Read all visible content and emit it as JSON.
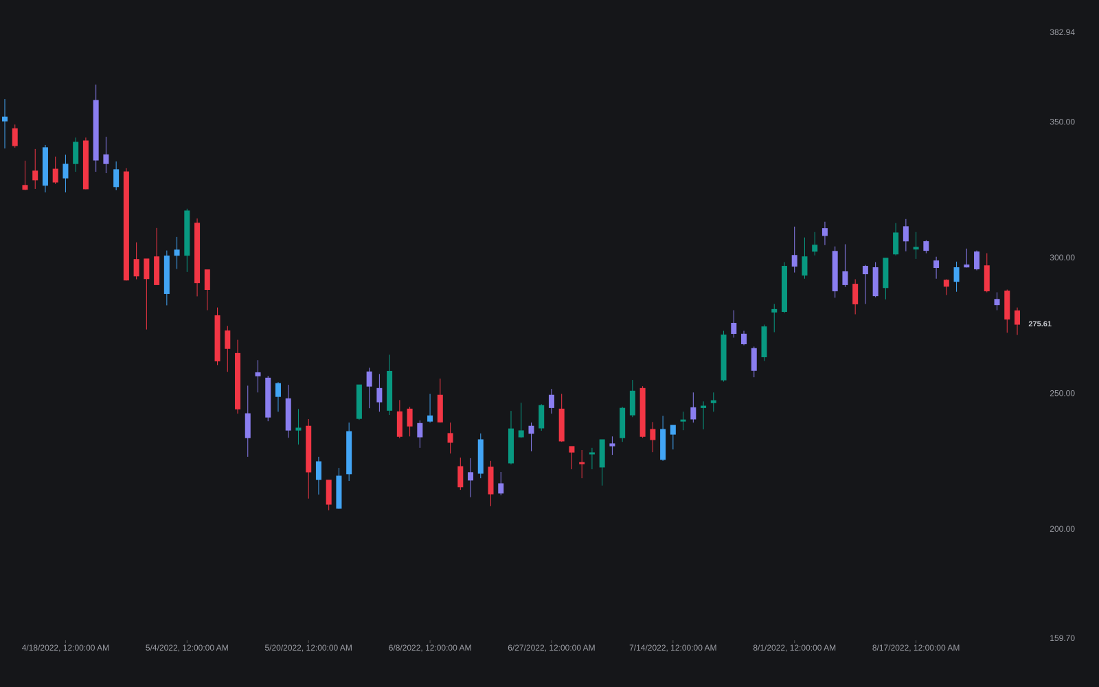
{
  "chart_data": {
    "type": "candlestick",
    "categories": [
      null,
      null,
      null,
      null,
      null,
      null,
      "4/18/2022, 12:00:00 AM",
      null,
      null,
      null,
      null,
      null,
      null,
      null,
      null,
      null,
      null,
      null,
      "5/4/2022, 12:00:00 AM",
      null,
      null,
      null,
      null,
      null,
      null,
      null,
      null,
      null,
      null,
      null,
      "5/20/2022, 12:00:00 AM",
      null,
      null,
      null,
      null,
      null,
      null,
      null,
      null,
      null,
      null,
      null,
      "6/8/2022, 12:00:00 AM",
      null,
      null,
      null,
      null,
      null,
      null,
      null,
      null,
      null,
      null,
      null,
      "6/27/2022, 12:00:00 AM",
      null,
      null,
      null,
      null,
      null,
      null,
      null,
      null,
      null,
      null,
      null,
      "7/14/2022, 12:00:00 AM",
      null,
      null,
      null,
      null,
      null,
      null,
      null,
      null,
      null,
      null,
      null,
      "8/1/2022, 12:00:00 AM",
      null,
      null,
      null,
      null,
      null,
      null,
      null,
      null,
      null,
      null,
      null,
      "8/17/2022, 12:00:00 AM",
      null,
      null,
      null,
      null,
      null,
      null,
      null,
      null,
      null,
      null
    ],
    "series": [
      {
        "open": [
          350.5,
          347.7,
          326.8,
          332.1,
          340.7,
          332.8,
          329.5,
          334.8,
          343.2,
          358.1,
          338.1,
          332.6,
          331.8,
          299.5,
          299.7,
          300.5,
          300.8,
          301.0,
          301.0,
          312.9,
          295.7,
          278.8,
          273.2,
          264.9,
          242.7,
          257.8,
          255.8,
          253.8,
          248.2,
          236.6,
          238.1,
          225.0,
          218.2,
          207.8,
          220.5,
          240.9,
          258.1,
          252.0,
          243.9,
          243.4,
          244.4,
          239.1,
          239.9,
          249.5,
          235.4,
          223.2,
          221.0,
          220.7,
          223.0,
          216.9,
          224.5,
          234.1,
          238.1,
          237.4,
          249.5,
          244.4,
          230.6,
          224.7,
          227.8,
          223.0,
          231.6,
          233.8,
          242.2,
          252.0,
          236.9,
          225.8,
          235.1,
          239.9,
          244.9,
          244.9,
          246.7,
          255.1,
          276.0,
          272.0,
          266.7,
          263.6,
          280.1,
          280.3,
          301.0,
          293.7,
          302.5,
          310.9,
          302.5,
          295.0,
          290.4,
          297.0,
          296.5,
          289.1,
          301.5,
          311.6,
          303.3,
          306.1,
          299.0,
          291.9,
          291.4,
          297.5,
          302.3,
          297.2,
          284.8,
          287.9,
          280.6
        ],
        "high": [
          358.6,
          349.2,
          335.9,
          340.2,
          341.7,
          337.4,
          338.1,
          344.4,
          344.4,
          363.9,
          344.7,
          335.6,
          333.1,
          305.8,
          299.7,
          311.1,
          302.8,
          307.8,
          318.2,
          314.6,
          295.7,
          281.8,
          275.0,
          269.9,
          253.0,
          262.4,
          256.6,
          254.3,
          253.3,
          244.4,
          240.7,
          226.8,
          218.2,
          222.7,
          239.4,
          253.3,
          259.6,
          257.3,
          264.4,
          247.7,
          245.2,
          240.2,
          250.0,
          255.6,
          239.4,
          226.5,
          226.3,
          235.4,
          225.3,
          221.2,
          243.7,
          246.7,
          239.4,
          246.2,
          251.8,
          250.0,
          230.6,
          229.3,
          230.1,
          233.1,
          234.3,
          245.2,
          255.1,
          252.8,
          239.6,
          241.9,
          238.4,
          243.4,
          250.5,
          247.2,
          250.5,
          273.2,
          280.8,
          273.2,
          267.4,
          275.5,
          283.1,
          298.5,
          311.6,
          307.6,
          309.6,
          313.4,
          304.3,
          305.1,
          292.2,
          297.5,
          298.5,
          300.0,
          312.9,
          314.4,
          309.6,
          306.6,
          300.5,
          292.2,
          298.7,
          303.5,
          302.8,
          301.8,
          287.4,
          288.4,
          281.8
        ],
        "low": [
          340.4,
          340.7,
          325.0,
          325.5,
          324.2,
          327.3,
          324.2,
          331.8,
          325.3,
          331.8,
          331.3,
          325.0,
          291.7,
          292.2,
          273.7,
          290.2,
          282.6,
          296.0,
          294.9,
          285.9,
          280.8,
          260.6,
          258.1,
          242.7,
          226.8,
          250.5,
          239.9,
          243.4,
          233.8,
          231.3,
          211.4,
          212.9,
          207.1,
          207.6,
          217.9,
          240.4,
          244.7,
          243.4,
          242.2,
          233.6,
          234.3,
          230.1,
          239.4,
          239.4,
          228.0,
          214.6,
          211.9,
          218.9,
          208.6,
          212.6,
          224.0,
          233.8,
          228.8,
          236.4,
          242.7,
          232.3,
          222.2,
          218.9,
          222.2,
          216.2,
          227.5,
          232.3,
          241.4,
          233.8,
          228.5,
          225.3,
          229.5,
          236.6,
          239.4,
          236.9,
          243.4,
          254.5,
          270.7,
          267.9,
          256.1,
          262.1,
          272.7,
          279.8,
          294.7,
          292.4,
          301.0,
          304.8,
          285.4,
          289.4,
          279.3,
          283.1,
          285.6,
          284.8,
          301.0,
          302.5,
          299.7,
          301.8,
          292.4,
          286.4,
          287.6,
          296.5,
          295.5,
          287.4,
          280.8,
          272.5,
          271.7
        ],
        "close": [
          352.0,
          341.4,
          325.3,
          328.8,
          326.8,
          328.0,
          334.6,
          342.7,
          325.5,
          336.1,
          334.8,
          326.3,
          291.9,
          293.4,
          292.4,
          290.2,
          286.9,
          303.0,
          317.4,
          290.9,
          288.4,
          262.1,
          266.7,
          244.4,
          233.8,
          256.6,
          241.4,
          249.0,
          236.6,
          237.4,
          221.2,
          218.4,
          209.3,
          219.7,
          236.1,
          253.3,
          252.8,
          247.0,
          258.3,
          234.3,
          238.1,
          234.1,
          241.9,
          239.6,
          232.1,
          215.7,
          218.2,
          233.1,
          213.1,
          213.4,
          237.1,
          236.4,
          235.4,
          245.7,
          244.9,
          232.6,
          228.5,
          224.2,
          228.3,
          233.1,
          230.8,
          244.7,
          251.0,
          234.3,
          233.1,
          236.9,
          238.4,
          240.4,
          240.7,
          245.5,
          247.5,
          271.7,
          272.2,
          268.4,
          258.6,
          274.7,
          281.1,
          297.0,
          297.0,
          300.5,
          304.8,
          308.3,
          287.9,
          290.2,
          283.1,
          294.2,
          286.1,
          300.0,
          309.3,
          306.3,
          304.0,
          302.8,
          296.5,
          289.6,
          296.5,
          296.7,
          296.0,
          287.9,
          282.8,
          277.5,
          275.61
        ],
        "colors": [
          "#42a5f5",
          "#f23645",
          "#f23645",
          "#f23645",
          "#42a5f5",
          "#f23645",
          "#42a5f5",
          "#089981",
          "#f23645",
          "#8a7ef0",
          "#8a7ef0",
          "#42a5f5",
          "#f23645",
          "#f23645",
          "#f23645",
          "#f23645",
          "#42a5f5",
          "#42a5f5",
          "#089981",
          "#f23645",
          "#f23645",
          "#f23645",
          "#f23645",
          "#f23645",
          "#8a7ef0",
          "#8a7ef0",
          "#8a7ef0",
          "#42a5f5",
          "#8a7ef0",
          "#089981",
          "#f23645",
          "#42a5f5",
          "#f23645",
          "#42a5f5",
          "#42a5f5",
          "#089981",
          "#8a7ef0",
          "#8a7ef0",
          "#089981",
          "#f23645",
          "#f23645",
          "#8a7ef0",
          "#42a5f5",
          "#f23645",
          "#f23645",
          "#f23645",
          "#8a7ef0",
          "#42a5f5",
          "#f23645",
          "#8a7ef0",
          "#089981",
          "#089981",
          "#8a7ef0",
          "#089981",
          "#8a7ef0",
          "#f23645",
          "#f23645",
          "#f23645",
          "#089981",
          "#089981",
          "#8a7ef0",
          "#089981",
          "#089981",
          "#f23645",
          "#f23645",
          "#42a5f5",
          "#42a5f5",
          "#089981",
          "#8a7ef0",
          "#089981",
          "#089981",
          "#089981",
          "#8a7ef0",
          "#8a7ef0",
          "#8a7ef0",
          "#089981",
          "#089981",
          "#089981",
          "#8a7ef0",
          "#089981",
          "#089981",
          "#8a7ef0",
          "#8a7ef0",
          "#8a7ef0",
          "#f23645",
          "#8a7ef0",
          "#8a7ef0",
          "#089981",
          "#089981",
          "#8a7ef0",
          "#089981",
          "#8a7ef0",
          "#8a7ef0",
          "#f23645",
          "#42a5f5",
          "#8a7ef0",
          "#8a7ef0",
          "#f23645",
          "#8a7ef0",
          "#f23645",
          "#f23645"
        ]
      }
    ],
    "ylim": [
      159.7,
      382.94
    ],
    "yticks": [
      {
        "value": 159.7,
        "label": "159.70"
      },
      {
        "value": 200,
        "label": "200.00"
      },
      {
        "value": 250,
        "label": "250.00"
      },
      {
        "value": 300,
        "label": "300.00"
      },
      {
        "value": 350,
        "label": "350.00"
      },
      382.94
    ],
    "grid": false
  }
}
